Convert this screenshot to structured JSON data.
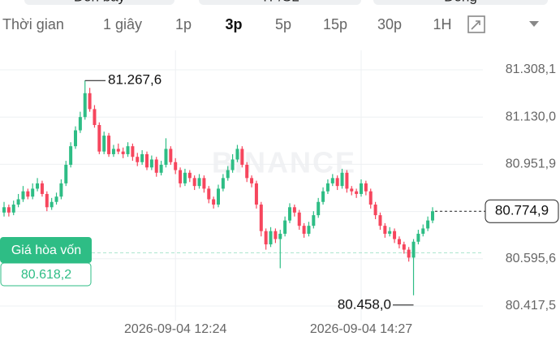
{
  "header_buttons": [
    "Đòn bẩy",
    "TP/SL",
    "Đóng"
  ],
  "timeframes": [
    "Thời gian",
    "1 giây",
    "1p",
    "3p",
    "5p",
    "15p",
    "30p",
    "1H"
  ],
  "selected_timeframe": "3p",
  "chart_data": {
    "type": "candlestick",
    "watermark": "BINANCE",
    "up_color": "#2ebd85",
    "down_color": "#f6465d",
    "open": [
      80770,
      80790,
      80770,
      80800,
      80820,
      80850,
      80830,
      80860,
      80880,
      80840,
      80790,
      80810,
      80830,
      80880,
      80950,
      81020,
      81080,
      81130,
      81220,
      81160,
      81100,
      81000,
      81060,
      80990,
      81010,
      81000,
      80990,
      81020,
      80980,
      80960,
      80990,
      80940,
      80970,
      80920,
      80950,
      81010,
      80960,
      80930,
      80880,
      80920,
      80900,
      80870,
      80900,
      80860,
      80820,
      80800,
      80860,
      80900,
      80930,
      80970,
      81010,
      80950,
      80900,
      80880,
      80800,
      80700,
      80650,
      80700,
      80670,
      80690,
      80740,
      80790,
      80770,
      80720,
      80690,
      80720,
      80760,
      80810,
      80850,
      80880,
      80900,
      80870,
      80920,
      80860,
      80850,
      80840,
      80880,
      80850,
      80800,
      80760,
      80720,
      80690,
      80700,
      80670,
      80650,
      80630,
      80600,
      80660,
      80690,
      80710,
      80740
    ],
    "high": [
      80810,
      80800,
      80815,
      80840,
      80870,
      80860,
      80880,
      80900,
      80890,
      80850,
      80825,
      80845,
      80895,
      80965,
      81035,
      81095,
      81150,
      81267.6,
      81240,
      81175,
      81110,
      81075,
      81070,
      81025,
      81030,
      81015,
      81035,
      81030,
      80995,
      81005,
      81000,
      80985,
      80980,
      80965,
      81050,
      81020,
      80975,
      80940,
      80935,
      80930,
      80910,
      80915,
      80910,
      80870,
      80830,
      80875,
      80915,
      80945,
      80990,
      81025,
      81020,
      80960,
      80910,
      80890,
      80810,
      80710,
      80715,
      80710,
      80705,
      80755,
      80805,
      80800,
      80780,
      80730,
      80735,
      80775,
      80825,
      80865,
      80895,
      80915,
      80910,
      80935,
      80930,
      80870,
      80860,
      80895,
      80890,
      80860,
      80810,
      80770,
      80730,
      80715,
      80710,
      80680,
      80660,
      80640,
      80670,
      80705,
      80725,
      80755,
      80790
    ],
    "low": [
      80755,
      80755,
      80760,
      80790,
      80810,
      80820,
      80820,
      80850,
      80830,
      80775,
      80780,
      80800,
      80820,
      80870,
      80940,
      81010,
      81070,
      81120,
      81150,
      81090,
      80990,
      80990,
      80980,
      80980,
      80990,
      80975,
      80980,
      80965,
      80945,
      80950,
      80930,
      80930,
      80905,
      80910,
      80940,
      80950,
      80915,
      80865,
      80870,
      80885,
      80855,
      80860,
      80845,
      80805,
      80785,
      80790,
      80850,
      80890,
      80920,
      80960,
      80940,
      80885,
      80865,
      80785,
      80680,
      80630,
      80640,
      80655,
      80560,
      80680,
      80730,
      80755,
      80705,
      80675,
      80680,
      80710,
      80750,
      80800,
      80840,
      80870,
      80855,
      80860,
      80845,
      80835,
      80825,
      80830,
      80835,
      80785,
      80745,
      80705,
      80675,
      80680,
      80655,
      80635,
      80615,
      80585,
      80458,
      80650,
      80680,
      80700,
      80730
    ],
    "close": [
      80790,
      80770,
      80800,
      80820,
      80850,
      80830,
      80860,
      80880,
      80840,
      80790,
      80810,
      80830,
      80880,
      80950,
      81020,
      81080,
      81130,
      81220,
      81160,
      81100,
      81000,
      81060,
      80990,
      81010,
      81000,
      80990,
      81020,
      80980,
      80960,
      80990,
      80940,
      80970,
      80920,
      80950,
      81010,
      80960,
      80930,
      80880,
      80920,
      80900,
      80870,
      80900,
      80860,
      80820,
      80800,
      80860,
      80900,
      80930,
      80970,
      81010,
      80950,
      80900,
      80880,
      80800,
      80700,
      80650,
      80700,
      80670,
      80690,
      80740,
      80790,
      80770,
      80720,
      80690,
      80720,
      80760,
      80810,
      80850,
      80880,
      80900,
      80870,
      80920,
      80860,
      80850,
      80840,
      80880,
      80850,
      80800,
      80760,
      80720,
      80690,
      80700,
      80670,
      80650,
      80630,
      80600,
      80660,
      80690,
      80710,
      80740,
      80774.9
    ],
    "xlim": [
      0,
      90
    ],
    "xticks": [
      {
        "value": 36,
        "label": "2026-09-04 12:24"
      },
      {
        "value": 75,
        "label": "2026-09-04 14:27"
      }
    ],
    "ylim": [
      80417.5,
      81308.1
    ],
    "yticks": [
      {
        "value": 81308.1,
        "label": "81.308,1"
      },
      {
        "value": 81130.0,
        "label": "81.130,0"
      },
      {
        "value": 80951.9,
        "label": "80.951,9"
      },
      {
        "value": 80773.7,
        "label": "80.773,7"
      },
      {
        "value": 80595.6,
        "label": "80.595,6"
      },
      {
        "value": 80417.5,
        "label": "80.417,5"
      }
    ],
    "grid": true,
    "high_marker": {
      "value": 81267.6,
      "label": "81.267,6"
    },
    "low_marker": {
      "value": 80458.0,
      "label": "80.458,0"
    },
    "last_price": {
      "value": 80774.9,
      "label": "80.774,9"
    },
    "breakeven": {
      "title": "Giá hòa vốn",
      "value": 80618.2,
      "label": "80.618,2"
    }
  }
}
